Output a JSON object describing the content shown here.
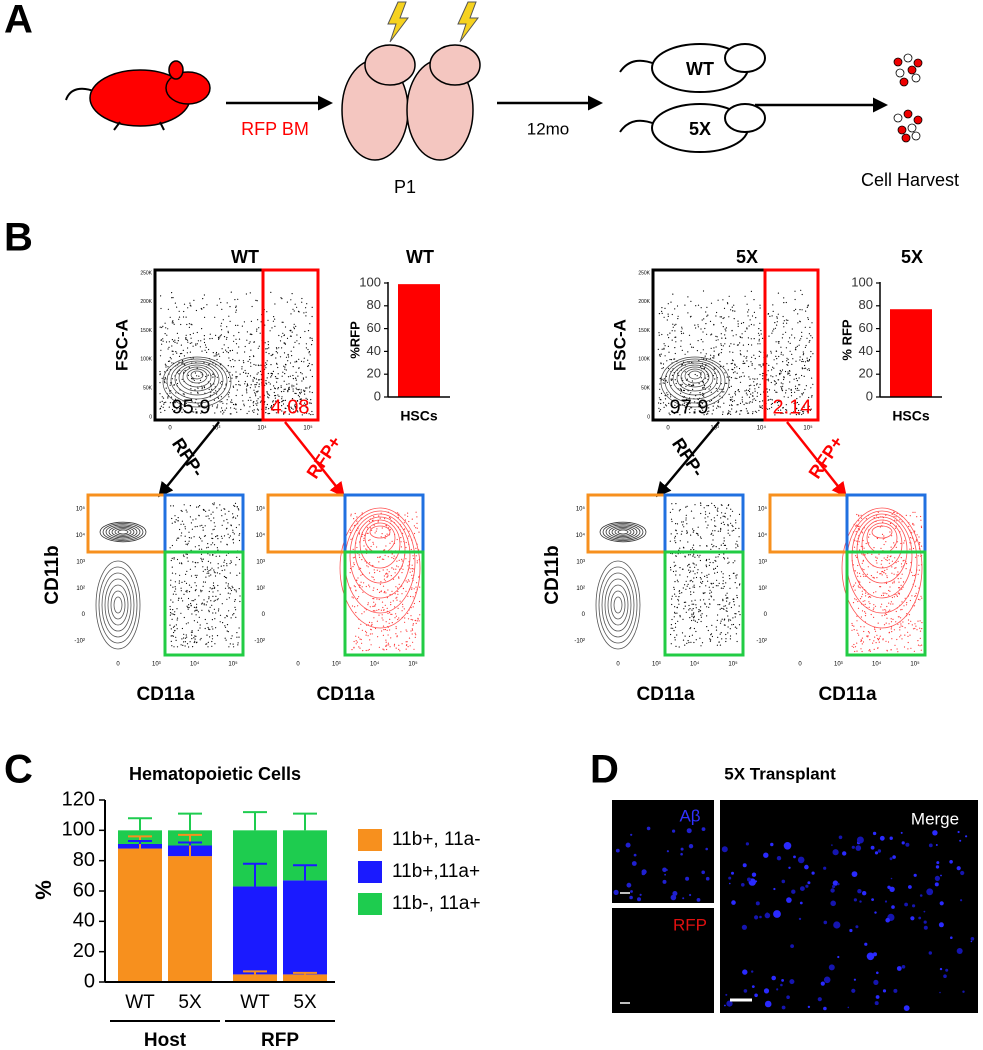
{
  "figure": {
    "panel_labels": [
      "A",
      "B",
      "C",
      "D"
    ],
    "panel_a": {
      "donor_label": "RFP BM",
      "pup_label": "P1",
      "time_label": "12mo",
      "mouse_labels": [
        "WT",
        "5X"
      ],
      "harvest_label": "Cell Harvest"
    },
    "panel_b": {
      "flow": [
        {
          "title": "WT",
          "y_label": "FSC-A",
          "gate_values": [
            95.9,
            4.08
          ]
        },
        {
          "title": "5X",
          "y_label": "FSC-A",
          "gate_values": [
            97.9,
            2.14
          ]
        }
      ],
      "arrow_labels": [
        "RFP-",
        "RFP+"
      ],
      "marker_y_label": "CD11b",
      "marker_x_label": "CD11a",
      "fsc_ticks": [
        "250K",
        "200K",
        "150K",
        "100K",
        "50K",
        "0"
      ],
      "log_y_ticks": [
        "10⁵",
        "10⁴",
        "10³",
        "10²",
        "0",
        "-10²"
      ],
      "log_x_ticks": [
        "0",
        "10³",
        "10⁴",
        "10⁵"
      ]
    },
    "panel_d": {
      "title": "5X Transplant",
      "channel_labels": [
        "Aβ",
        "RFP",
        "Merge"
      ]
    }
  },
  "chart_data": [
    {
      "type": "bar",
      "title": "WT",
      "y_label": "%RFP",
      "categories": [
        "HSCs"
      ],
      "values": [
        99
      ],
      "color": "#ff0000",
      "ylim": [
        0,
        100
      ],
      "yticks": [
        0,
        20,
        40,
        60,
        80,
        100
      ]
    },
    {
      "type": "bar",
      "title": "5X",
      "y_label": "% RFP",
      "categories": [
        "HSCs"
      ],
      "values": [
        77
      ],
      "color": "#ff0000",
      "ylim": [
        0,
        100
      ],
      "yticks": [
        0,
        20,
        40,
        60,
        80,
        100
      ]
    },
    {
      "type": "stacked_bar",
      "title": "Hematopoietic Cells",
      "y_label": "%",
      "categories": [
        "WT",
        "5X",
        "WT",
        "5X"
      ],
      "groups": [
        "Host",
        "RFP"
      ],
      "series": [
        {
          "name": "11b+, 11a-",
          "color": "#f7901e",
          "values": [
            88,
            83,
            5,
            5
          ],
          "errors": [
            8,
            14,
            2,
            1
          ]
        },
        {
          "name": "11b+,11a+",
          "color": "#1a1aff",
          "values": [
            3,
            7,
            58,
            62
          ],
          "errors": [
            2,
            2,
            15,
            10
          ]
        },
        {
          "name": "11b-, 11a+",
          "color": "#1ecc4f",
          "values": [
            9,
            10,
            37,
            33
          ],
          "errors": [
            8,
            11,
            12,
            11
          ]
        }
      ],
      "ylim": [
        0,
        120
      ],
      "yticks": [
        0,
        20,
        40,
        60,
        80,
        100,
        120
      ]
    }
  ]
}
